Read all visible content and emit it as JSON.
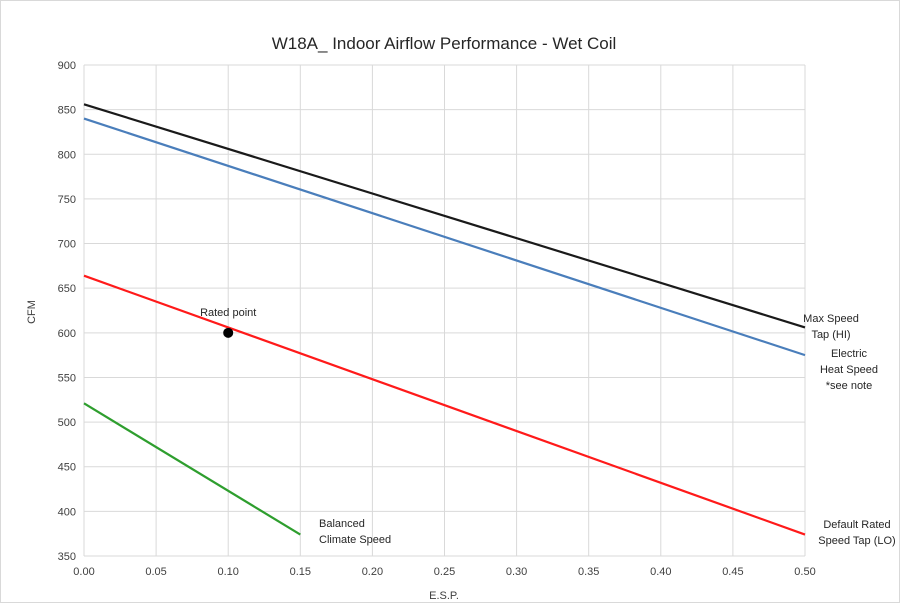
{
  "chart_data": {
    "type": "line",
    "title": "W18A_  Indoor Airflow Performance - Wet Coil",
    "xlabel": "E.S.P.",
    "ylabel": "CFM",
    "xlim": [
      0,
      0.5
    ],
    "ylim": [
      350,
      900
    ],
    "xticks": [
      "0.00",
      "0.05",
      "0.10",
      "0.15",
      "0.20",
      "0.25",
      "0.30",
      "0.35",
      "0.40",
      "0.45",
      "0.50"
    ],
    "yticks": [
      "350",
      "400",
      "450",
      "500",
      "550",
      "600",
      "650",
      "700",
      "750",
      "800",
      "850",
      "900"
    ],
    "grid": true,
    "legend": "none",
    "series": [
      {
        "name_lines": [
          "Max Speed",
          "Tap (HI)"
        ],
        "color": "#1a1a1a",
        "x": [
          0,
          0.5
        ],
        "y": [
          856,
          606
        ]
      },
      {
        "name_lines": [
          "Electric",
          "Heat Speed",
          "*see note"
        ],
        "color": "#4a7ebb",
        "x": [
          0,
          0.5
        ],
        "y": [
          840,
          575
        ]
      },
      {
        "name_lines": [
          "Default Rated",
          "Speed Tap (LO)"
        ],
        "color": "#ff1a1a",
        "x": [
          0,
          0.5
        ],
        "y": [
          664,
          374
        ]
      },
      {
        "name_lines": [
          "Balanced",
          "Climate Speed"
        ],
        "color": "#2e9e2e",
        "x": [
          0,
          0.15
        ],
        "y": [
          521,
          374
        ]
      }
    ],
    "annotations": [
      {
        "text": "Rated point",
        "x": 0.1,
        "y": 600,
        "color": "#000000"
      }
    ]
  }
}
